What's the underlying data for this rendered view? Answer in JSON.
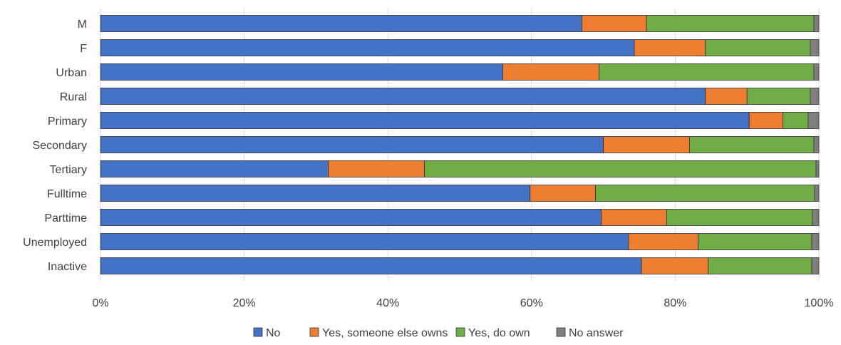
{
  "chart_data": {
    "type": "bar",
    "orientation": "horizontal",
    "stacked": true,
    "percent_stacked": true,
    "categories": [
      "M",
      "F",
      "Urban",
      "Rural",
      "Primary",
      "Secondary",
      "Tertiary",
      "Fulltime",
      "Parttime",
      "Unemployed",
      "Inactive"
    ],
    "series": [
      {
        "name": "No",
        "color": "#4472c4",
        "values": [
          67,
          74.3,
          56,
          84.2,
          90.3,
          70,
          31.7,
          59.8,
          69.7,
          73.5,
          75.3
        ]
      },
      {
        "name": "Yes, someone else owns",
        "color": "#ed7d31",
        "values": [
          9,
          9.9,
          13.4,
          5.8,
          4.7,
          12,
          13.4,
          9.1,
          9.1,
          9.7,
          9.3
        ]
      },
      {
        "name": "Yes, do own",
        "color": "#70ad47",
        "values": [
          23.3,
          14.6,
          29.9,
          8.8,
          3.5,
          17.3,
          54.5,
          30.5,
          20.3,
          15.8,
          14.4
        ]
      },
      {
        "name": "No answer",
        "color": "#7f7f7f",
        "values": [
          0.7,
          1.2,
          0.7,
          1.2,
          1.5,
          0.7,
          0.4,
          0.6,
          0.9,
          1,
          1
        ]
      }
    ],
    "xlim": [
      0,
      100
    ],
    "xticks": [
      0,
      20,
      40,
      60,
      80,
      100
    ],
    "xtick_labels": [
      "0%",
      "20%",
      "40%",
      "60%",
      "80%",
      "100%"
    ],
    "title": "",
    "xlabel": "",
    "ylabel": "",
    "grid": "vertical",
    "legend_position": "bottom"
  }
}
